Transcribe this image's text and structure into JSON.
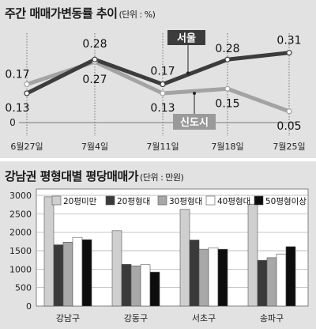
{
  "chart_data": [
    {
      "type": "line",
      "title": "주간 매매가변동률 추이",
      "unit": "(단위 : %)",
      "categories": [
        "6월27일",
        "7월4일",
        "7월11일",
        "7월18일",
        "7월25일"
      ],
      "ylim": [
        0,
        0.33
      ],
      "zero_label": "0",
      "series": [
        {
          "name": "서울",
          "values": [
            0.13,
            0.28,
            0.17,
            0.28,
            0.31
          ],
          "color": "#3c3c3c",
          "labels": [
            "0.13",
            "0.28",
            "0.17",
            "0.28",
            "0.31"
          ]
        },
        {
          "name": "신도시",
          "values": [
            0.17,
            0.27,
            0.13,
            0.15,
            0.05
          ],
          "color": "#a3a3a3",
          "labels": [
            "0.17",
            "0.27",
            "0.13",
            "0.15",
            "0.05"
          ]
        }
      ]
    },
    {
      "type": "bar",
      "title": "강남권 평형대별 평당매매가",
      "unit": "(단위 : 만원)",
      "categories": [
        "강남구",
        "강동구",
        "서초구",
        "송파구"
      ],
      "ylim": [
        0,
        3000
      ],
      "yticks": [
        "0",
        "500",
        "1000",
        "1500",
        "2000",
        "2500",
        "3000"
      ],
      "legend_position": "top-right",
      "series": [
        {
          "name": "20평미만",
          "color": "#cfcfcf",
          "values": [
            2960,
            2040,
            2620,
            2760
          ]
        },
        {
          "name": "20평형대",
          "color": "#3a3a3a",
          "values": [
            1660,
            1130,
            1790,
            1240
          ]
        },
        {
          "name": "30평형대",
          "color": "#a8a8a8",
          "values": [
            1730,
            1090,
            1540,
            1310
          ]
        },
        {
          "name": "40평형대",
          "color": "#ffffff",
          "values": [
            1860,
            1120,
            1580,
            1410
          ]
        },
        {
          "name": "50평형이상",
          "color": "#0d0d0d",
          "values": [
            1800,
            920,
            1540,
            1610
          ]
        }
      ]
    }
  ]
}
